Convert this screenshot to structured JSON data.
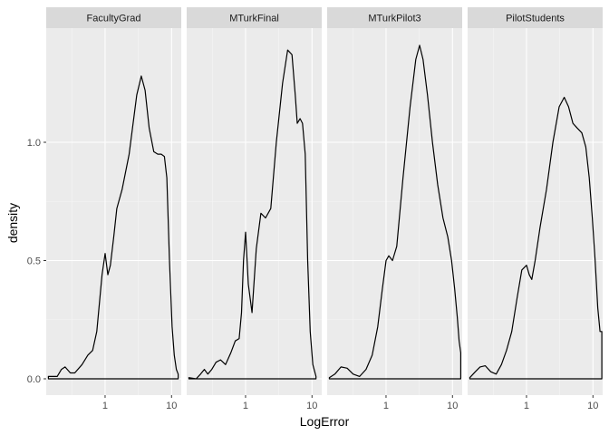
{
  "chart_data": {
    "type": "line",
    "chart_kind": "faceted density plot",
    "xlabel": "LogError",
    "ylabel": "density",
    "x_scale": "log10",
    "xlim": [
      0.13,
      14
    ],
    "ylim": [
      -0.04,
      1.45
    ],
    "x_ticks": [
      1,
      10
    ],
    "x_tick_labels": [
      "1",
      "10"
    ],
    "y_ticks": [
      0.0,
      0.5,
      1.0
    ],
    "y_tick_labels": [
      "0.0",
      "0.5",
      "1.0"
    ],
    "grid": true,
    "legend": "none",
    "colors": {
      "panel_background": "#ebebeb",
      "strip_background": "#d9d9d9",
      "grid_major": "#ffffff",
      "grid_minor": "#f5f5f5",
      "line": "#000000"
    },
    "facets": [
      {
        "name": "FacultyGrad",
        "x": [
          0.14,
          0.19,
          0.22,
          0.25,
          0.3,
          0.35,
          0.45,
          0.55,
          0.65,
          0.75,
          0.9,
          1.0,
          1.1,
          1.2,
          1.35,
          1.5,
          1.8,
          2.3,
          3.0,
          3.5,
          4.0,
          4.6,
          5.4,
          6.2,
          7.0,
          7.8,
          8.5,
          9.3,
          10.2,
          11.0,
          11.8,
          12.6
        ],
        "y": [
          0.01,
          0.01,
          0.04,
          0.05,
          0.025,
          0.025,
          0.06,
          0.1,
          0.12,
          0.2,
          0.44,
          0.53,
          0.44,
          0.48,
          0.6,
          0.72,
          0.8,
          0.95,
          1.2,
          1.28,
          1.22,
          1.06,
          0.96,
          0.95,
          0.95,
          0.94,
          0.85,
          0.5,
          0.22,
          0.1,
          0.04,
          0.02
        ]
      },
      {
        "name": "MTurkFinal",
        "x": [
          0.14,
          0.18,
          0.21,
          0.24,
          0.27,
          0.31,
          0.36,
          0.42,
          0.5,
          0.6,
          0.7,
          0.8,
          0.87,
          0.93,
          1.0,
          1.1,
          1.25,
          1.45,
          1.7,
          2.0,
          2.4,
          2.9,
          3.6,
          4.3,
          5.0,
          5.6,
          6.0,
          6.6,
          7.2,
          7.9,
          8.6,
          9.4,
          10.3,
          11.5
        ],
        "y": [
          0.005,
          0.0,
          0.02,
          0.04,
          0.02,
          0.04,
          0.07,
          0.08,
          0.06,
          0.11,
          0.16,
          0.17,
          0.28,
          0.5,
          0.62,
          0.4,
          0.28,
          0.55,
          0.7,
          0.68,
          0.72,
          1.0,
          1.25,
          1.39,
          1.37,
          1.2,
          1.08,
          1.1,
          1.08,
          0.95,
          0.5,
          0.2,
          0.06,
          0.01
        ]
      },
      {
        "name": "MTurkPilot3",
        "x": [
          0.14,
          0.17,
          0.21,
          0.26,
          0.32,
          0.4,
          0.5,
          0.62,
          0.75,
          0.88,
          1.0,
          1.1,
          1.25,
          1.45,
          1.8,
          2.3,
          2.8,
          3.2,
          3.6,
          4.2,
          5.0,
          6.0,
          7.2,
          8.5,
          9.7,
          10.8,
          11.8,
          12.6,
          13.3
        ],
        "y": [
          0.005,
          0.02,
          0.05,
          0.045,
          0.02,
          0.01,
          0.04,
          0.1,
          0.22,
          0.38,
          0.5,
          0.52,
          0.5,
          0.56,
          0.85,
          1.15,
          1.35,
          1.41,
          1.35,
          1.2,
          1.0,
          0.82,
          0.68,
          0.6,
          0.5,
          0.38,
          0.26,
          0.16,
          0.11
        ]
      },
      {
        "name": "PilotStudents",
        "x": [
          0.14,
          0.17,
          0.2,
          0.24,
          0.29,
          0.35,
          0.42,
          0.5,
          0.6,
          0.72,
          0.85,
          1.0,
          1.1,
          1.2,
          1.35,
          1.6,
          2.0,
          2.5,
          3.1,
          3.7,
          4.3,
          5.0,
          5.8,
          6.8,
          7.8,
          8.8,
          9.8,
          10.8,
          11.8,
          12.8,
          13.6
        ],
        "y": [
          0.005,
          0.03,
          0.05,
          0.055,
          0.03,
          0.02,
          0.06,
          0.12,
          0.2,
          0.34,
          0.46,
          0.48,
          0.44,
          0.42,
          0.5,
          0.64,
          0.8,
          1.0,
          1.15,
          1.19,
          1.15,
          1.08,
          1.06,
          1.04,
          0.98,
          0.85,
          0.68,
          0.5,
          0.3,
          0.2,
          0.2
        ]
      }
    ]
  }
}
